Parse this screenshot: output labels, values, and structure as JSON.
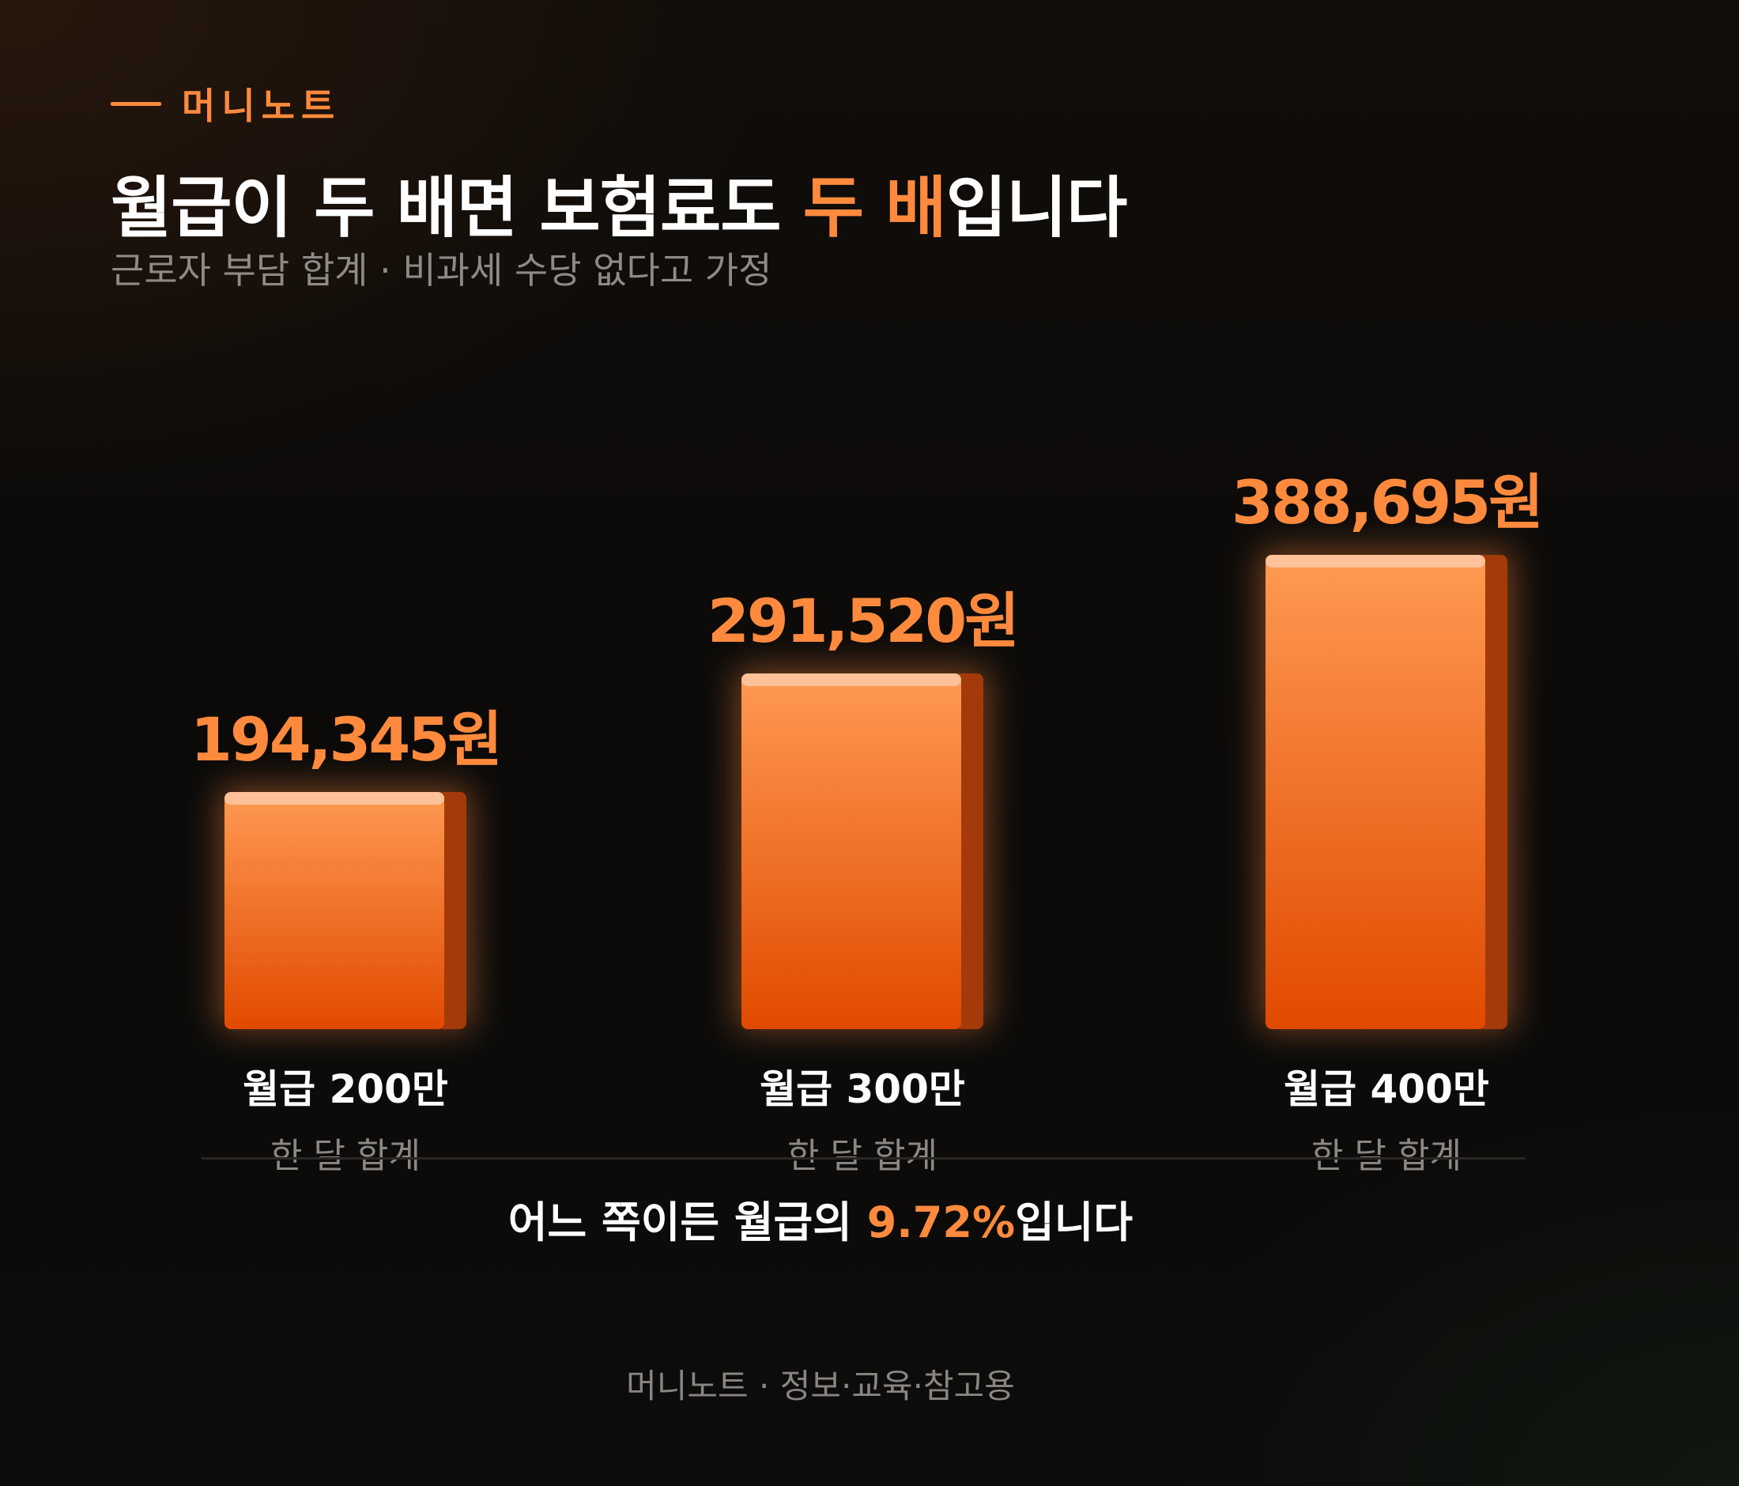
{
  "brand": "머니노트",
  "title": {
    "before": "월급이 두 배면 보험료도 ",
    "highlight": "두 배",
    "after": "입니다"
  },
  "subtitle": "근로자 부담 합계 · 비과세 수당 없다고 가정",
  "colors": {
    "background": "#0c0a09",
    "accent": "#ff8a3d",
    "bar_top": "#ff9a52",
    "bar_bottom": "#e14a00",
    "bar_side": "#a43a0a",
    "text": "#ffffff",
    "muted": "#8f8a86"
  },
  "chart_data": {
    "type": "bar",
    "categories": [
      "월급 200만",
      "월급 300만",
      "월급 400만"
    ],
    "category_sublabels": [
      "한 달 합계",
      "한 달 합계",
      "한 달 합계"
    ],
    "values": [
      194345,
      291520,
      388695
    ],
    "value_labels": [
      "194,345원",
      "291,520원",
      "388,695원"
    ],
    "ylim": [
      0,
      388695
    ],
    "grid": false,
    "legend": "none"
  },
  "summary": {
    "before": "어느 쪽이든 월급의 ",
    "highlight": "9.72%",
    "after": "입니다"
  },
  "footer": "머니노트 · 정보·교육·참고용"
}
